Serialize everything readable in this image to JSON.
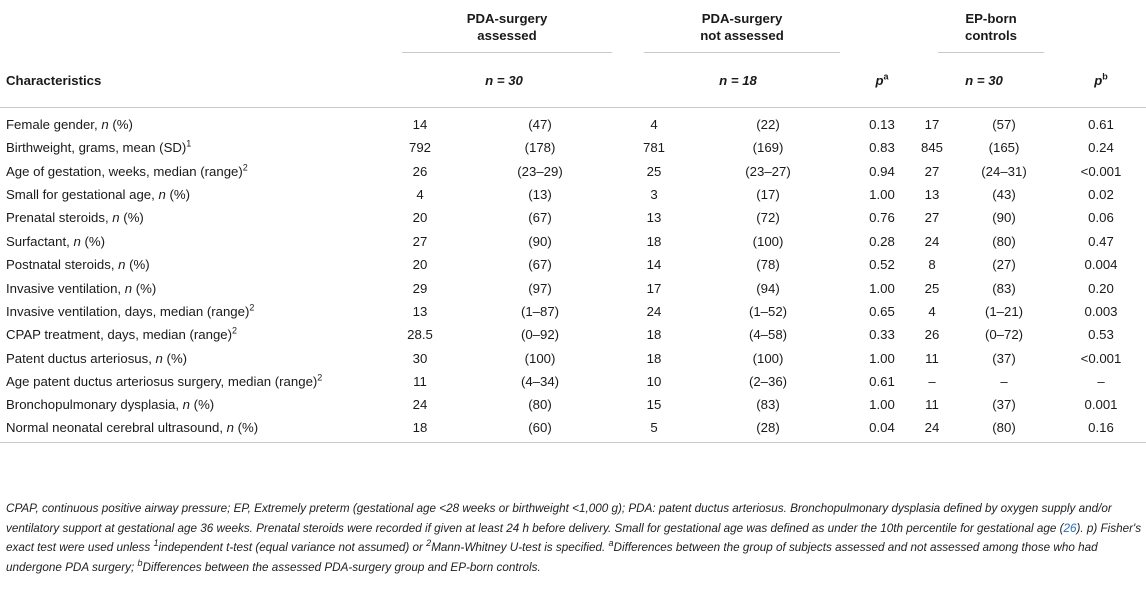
{
  "header": {
    "group1": [
      "PDA-surgery",
      "assessed"
    ],
    "group2": [
      "PDA-surgery",
      "not assessed"
    ],
    "group3": [
      "EP-born",
      "controls"
    ],
    "characteristics_label": "Characteristics",
    "n1": "n = 30",
    "n2": "n = 18",
    "pa": "p",
    "pa_sup": "a",
    "n3": "n = 30",
    "pb": "p",
    "pb_sup": "b"
  },
  "rows": [
    {
      "label": "Female gender, ",
      "label_it": "n",
      "label_tail": " (%)",
      "sup": "",
      "a1": "14",
      "a2": "(47)",
      "b1": "4",
      "b2": "(22)",
      "pa": "0.13",
      "c1": "17",
      "c2": "(57)",
      "pb": "0.61"
    },
    {
      "label": "Birthweight, grams, mean (SD)",
      "label_it": "",
      "label_tail": "",
      "sup": "1",
      "a1": "792",
      "a2": "(178)",
      "b1": "781",
      "b2": "(169)",
      "pa": "0.83",
      "c1": "845",
      "c2": "(165)",
      "pb": "0.24"
    },
    {
      "label": "Age of gestation, weeks, median (range)",
      "label_it": "",
      "label_tail": "",
      "sup": "2",
      "a1": "26",
      "a2": "(23–29)",
      "b1": "25",
      "b2": "(23–27)",
      "pa": "0.94",
      "c1": "27",
      "c2": "(24–31)",
      "pb": "<0.001"
    },
    {
      "label": "Small for gestational age, ",
      "label_it": "n",
      "label_tail": " (%)",
      "sup": "",
      "a1": "4",
      "a2": "(13)",
      "b1": "3",
      "b2": "(17)",
      "pa": "1.00",
      "c1": "13",
      "c2": "(43)",
      "pb": "0.02"
    },
    {
      "label": "Prenatal steroids, ",
      "label_it": "n",
      "label_tail": " (%)",
      "sup": "",
      "a1": "20",
      "a2": "(67)",
      "b1": "13",
      "b2": "(72)",
      "pa": "0.76",
      "c1": "27",
      "c2": "(90)",
      "pb": "0.06"
    },
    {
      "label": "Surfactant, ",
      "label_it": "n",
      "label_tail": " (%)",
      "sup": "",
      "a1": "27",
      "a2": "(90)",
      "b1": "18",
      "b2": "(100)",
      "pa": "0.28",
      "c1": "24",
      "c2": "(80)",
      "pb": "0.47"
    },
    {
      "label": "Postnatal steroids, ",
      "label_it": "n",
      "label_tail": " (%)",
      "sup": "",
      "a1": "20",
      "a2": "(67)",
      "b1": "14",
      "b2": "(78)",
      "pa": "0.52",
      "c1": "8",
      "c2": "(27)",
      "pb": "0.004"
    },
    {
      "label": "Invasive ventilation, ",
      "label_it": "n",
      "label_tail": " (%)",
      "sup": "",
      "a1": "29",
      "a2": "(97)",
      "b1": "17",
      "b2": "(94)",
      "pa": "1.00",
      "c1": "25",
      "c2": "(83)",
      "pb": "0.20"
    },
    {
      "label": "Invasive ventilation, days, median (range)",
      "label_it": "",
      "label_tail": "",
      "sup": "2",
      "a1": "13",
      "a2": "(1–87)",
      "b1": "24",
      "b2": "(1–52)",
      "pa": "0.65",
      "c1": "4",
      "c2": "(1–21)",
      "pb": "0.003"
    },
    {
      "label": "CPAP treatment, days, median (range)",
      "label_it": "",
      "label_tail": "",
      "sup": "2",
      "a1": "28.5",
      "a2": "(0–92)",
      "b1": "18",
      "b2": "(4–58)",
      "pa": "0.33",
      "c1": "26",
      "c2": "(0–72)",
      "pb": "0.53"
    },
    {
      "label": "Patent ductus arteriosus, ",
      "label_it": "n",
      "label_tail": " (%)",
      "sup": "",
      "a1": "30",
      "a2": "(100)",
      "b1": "18",
      "b2": "(100)",
      "pa": "1.00",
      "c1": "11",
      "c2": "(37)",
      "pb": "<0.001"
    },
    {
      "label": "Age patent ductus arteriosus surgery, median (range)",
      "label_it": "",
      "label_tail": "",
      "sup": "2",
      "a1": "11",
      "a2": "(4–34)",
      "b1": "10",
      "b2": "(2–36)",
      "pa": "0.61",
      "c1": "–",
      "c2": "–",
      "pb": "–"
    },
    {
      "label": "Bronchopulmonary dysplasia, ",
      "label_it": "n",
      "label_tail": " (%)",
      "sup": "",
      "a1": "24",
      "a2": "(80)",
      "b1": "15",
      "b2": "(83)",
      "pa": "1.00",
      "c1": "11",
      "c2": "(37)",
      "pb": "0.001"
    },
    {
      "label": "Normal neonatal cerebral ultrasound, ",
      "label_it": "n",
      "label_tail": " (%)",
      "sup": "",
      "a1": "18",
      "a2": "(60)",
      "b1": "5",
      "b2": "(28)",
      "pa": "0.04",
      "c1": "24",
      "c2": "(80)",
      "pb": "0.16"
    }
  ],
  "footnote": {
    "p1": "CPAP, continuous positive airway pressure; EP, Extremely preterm (gestational age <28 weeks or birthweight <1,000 g); PDA: patent ductus arteriosus. Bronchopulmonary dysplasia defined by oxygen supply and/or ventilatory support at gestational age 36 weeks. Prenatal steroids were recorded if given at least 24 h before delivery. Small for gestational age was defined as under the 10th percentile for gestational age (",
    "ref": "26",
    "p2": "). p) Fisher's exact test were used unless ",
    "s1": "1",
    "p3": "independent t-test (equal variance not assumed) or ",
    "s2": "2",
    "p4": "Mann-Whitney U-test is specified. ",
    "sa": "a",
    "p5": "Differences between the group of subjects assessed and not assessed among those who had undergone PDA surgery; ",
    "sb": "b",
    "p6": "Differences between the assessed PDA-surgery group and EP-born controls."
  },
  "colors": {
    "rule": "#c8c8c8",
    "ref_link": "#2a6db5",
    "text": "#1a1a1a"
  }
}
